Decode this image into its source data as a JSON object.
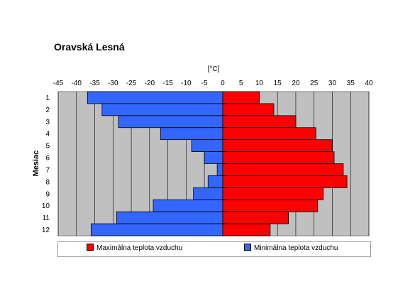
{
  "chart_data": {
    "type": "bar",
    "orientation": "horizontal",
    "title": "Oravská Lesná",
    "xlabel": "[°C]",
    "ylabel": "Mesiac",
    "xlim": [
      -45,
      40
    ],
    "xticks": [
      -45,
      -40,
      -35,
      -30,
      -25,
      -20,
      -15,
      -10,
      -5,
      0,
      5,
      10,
      15,
      20,
      25,
      30,
      35,
      40
    ],
    "categories": [
      "1",
      "2",
      "3",
      "4",
      "5",
      "6",
      "7",
      "8",
      "9",
      "10",
      "11",
      "12"
    ],
    "grid": true,
    "legend_position": "bottom",
    "series": [
      {
        "name": "Maximálna teplota vzduchu",
        "color": "#ff0000",
        "values": [
          10,
          14,
          20,
          25.5,
          30,
          30.5,
          33,
          34,
          27.5,
          26,
          18,
          13
        ]
      },
      {
        "name": "Minimálna teplota vzduchu",
        "color": "#3366ff",
        "values": [
          -37,
          -33,
          -28.5,
          -17,
          -8.5,
          -5,
          -1.5,
          -4,
          -8,
          -19,
          -29,
          -36
        ]
      }
    ]
  }
}
